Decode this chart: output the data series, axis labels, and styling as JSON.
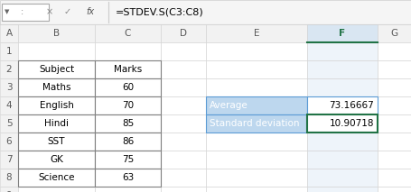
{
  "formula_bar_text": "=STDEV.S(C3:C8)",
  "table_rows": [
    {
      "label": "Subject",
      "value": "Marks"
    },
    {
      "label": "Maths",
      "value": "60"
    },
    {
      "label": "English",
      "value": "70"
    },
    {
      "label": "Hindi",
      "value": "85"
    },
    {
      "label": "SST",
      "value": "86"
    },
    {
      "label": "GK",
      "value": "75"
    },
    {
      "label": "Science",
      "value": "63"
    }
  ],
  "stats": [
    {
      "label": "Average",
      "value": "73.16667"
    },
    {
      "label": "Standard deviation",
      "value": "10.90718"
    }
  ],
  "highlight_color": "#BDD7EE",
  "grid_color": "#D0D0D0",
  "header_bg": "#F2F2F2",
  "selected_header_bg": "#D9E6F2",
  "active_cell_border": "#217346",
  "font_size": 7.5,
  "label_text_color": "#595959"
}
